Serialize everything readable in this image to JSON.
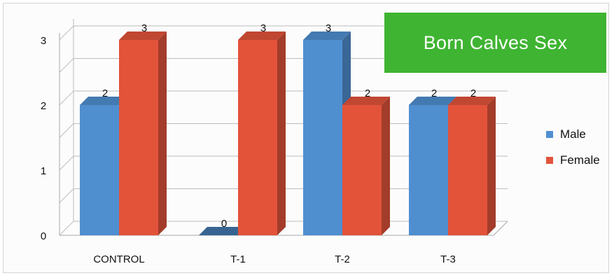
{
  "chart_data": {
    "type": "bar",
    "title": "Born Calves Sex",
    "categories": [
      "CONTROL",
      "T-1",
      "T-2",
      "T-3"
    ],
    "series": [
      {
        "name": "Male",
        "values": [
          2,
          0,
          3,
          2
        ],
        "color": "#4f8fd0"
      },
      {
        "name": "Female",
        "values": [
          3,
          3,
          2,
          2
        ],
        "color": "#e2533a"
      }
    ],
    "ylim": [
      0,
      3
    ],
    "yticks": [
      0,
      1,
      2,
      3
    ],
    "grid": true,
    "legend": "right",
    "three_d": true,
    "title_background": "#3fb432"
  }
}
